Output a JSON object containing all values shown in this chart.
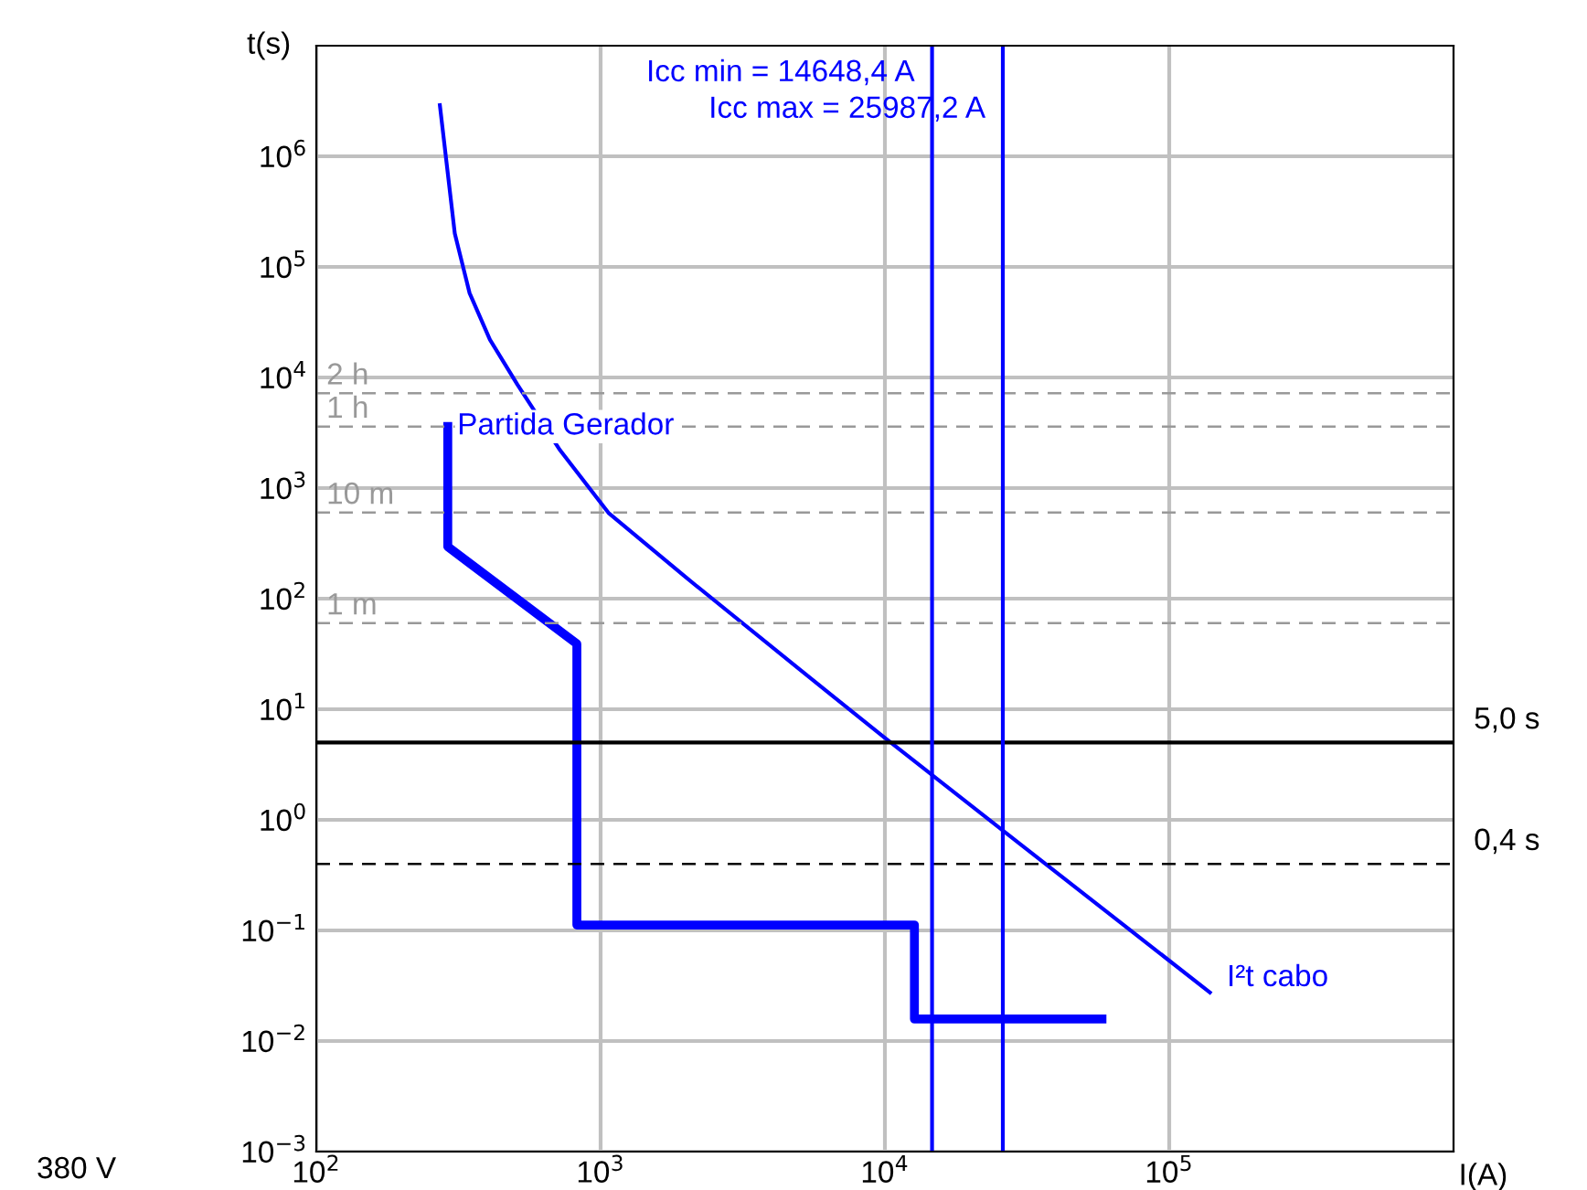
{
  "chart_data": {
    "type": "line",
    "xlabel": "I(A)",
    "ylabel": "t(s)",
    "log": "xy",
    "grid": true,
    "legend": false,
    "marker": "none",
    "line_style": "solid",
    "xlim": [
      100,
      1000000
    ],
    "ylim": [
      0.001,
      10000000
    ],
    "xticks": [
      {
        "value": 100,
        "label": "10$^{2}$"
      },
      {
        "value": 1000,
        "label": "10$^{3}$"
      },
      {
        "value": 10000,
        "label": "10$^{4}$"
      },
      {
        "value": 100000,
        "label": "10$^{5}$"
      }
    ],
    "yticks": [
      {
        "value": 0.001,
        "label": "10$^{−3}$"
      },
      {
        "value": 0.01,
        "label": "10$^{−2}$"
      },
      {
        "value": 0.1,
        "label": "10$^{−1}$"
      },
      {
        "value": 1,
        "label": "10$^{0}$"
      },
      {
        "value": 10,
        "label": "10$^{1}$"
      },
      {
        "value": 100,
        "label": "10$^{2}$"
      },
      {
        "value": 1000,
        "label": "10$^{3}$"
      },
      {
        "value": 10000,
        "label": "10$^{4}$"
      },
      {
        "value": 100000,
        "label": "10$^{5}$"
      },
      {
        "value": 1000000,
        "label": "10$^{6}$"
      }
    ],
    "series": [
      {
        "name": "I²t cabo",
        "color": "#0000ff",
        "x": [
          272,
          307,
          346,
          408,
          510,
          720,
          1070,
          2000,
          5000,
          10000,
          30000,
          139000
        ],
        "values": [
          2900000,
          200000,
          58000,
          22000,
          8600,
          2200,
          590,
          155,
          23,
          5.5,
          0.6,
          0.0275
        ]
      },
      {
        "name": "Partida Gerador",
        "color": "#0000ff",
        "x": [
          290,
          290,
          825,
          825,
          12700,
          12700,
          58000
        ],
        "values": [
          3600,
          295,
          39,
          0.112,
          0.112,
          0.0158,
          0.0158
        ]
      }
    ],
    "ref_lines": [
      {
        "axis": "y",
        "value": 7200,
        "label": "2 h",
        "color": "#999999",
        "line_style": "dashed"
      },
      {
        "axis": "y",
        "value": 3600,
        "label": "1 h",
        "color": "#999999",
        "line_style": "dashed"
      },
      {
        "axis": "y",
        "value": 600,
        "label": "10 m",
        "color": "#999999",
        "line_style": "dashed"
      },
      {
        "axis": "y",
        "value": 60,
        "label": "1 m",
        "color": "#999999",
        "line_style": "dashed"
      },
      {
        "axis": "y",
        "value": 5,
        "label": "5,0 s",
        "color": "#000000",
        "line_style": "solid"
      },
      {
        "axis": "y",
        "value": 0.4,
        "label": "0,4 s",
        "color": "#000000",
        "line_style": "dashed"
      },
      {
        "axis": "x",
        "value": 14648.4,
        "label": "Icc min = 14648,4 A",
        "color": "#0000ff",
        "line_style": "solid"
      },
      {
        "axis": "x",
        "value": 25987.2,
        "label": "Icc max = 25987,2 A",
        "color": "#0000ff",
        "line_style": "solid"
      }
    ],
    "annotations": [
      "380 V"
    ]
  }
}
